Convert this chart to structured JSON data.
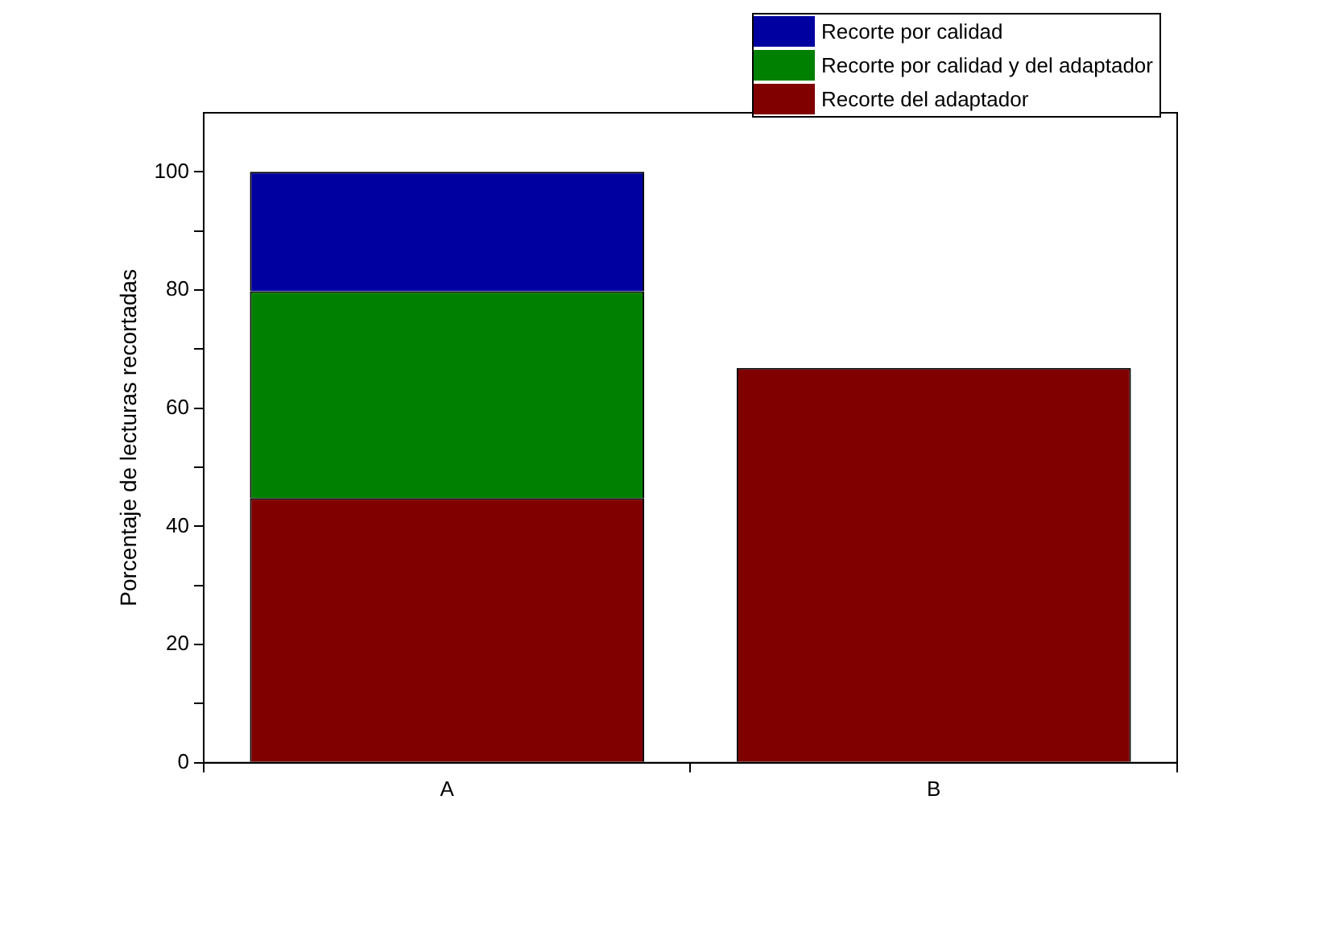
{
  "chart_data": {
    "type": "bar",
    "stacked": true,
    "ylabel": "Porcentaje de lecturas recortadas",
    "categories": [
      "A",
      "B"
    ],
    "series": [
      {
        "name": "Recorte del adaptador",
        "color": "#800000",
        "values": [
          44.8,
          66.8
        ]
      },
      {
        "name": "Recorte por calidad y del adaptador",
        "color": "#008000",
        "values": [
          35.0,
          null
        ]
      },
      {
        "name": "Recorte por calidad",
        "color": "#0000a0",
        "values": [
          20.2,
          null
        ]
      }
    ],
    "ylim": [
      0,
      110
    ],
    "yticks": [
      0,
      {
        "value": 10,
        "label": null
      },
      20,
      {
        "value": 30,
        "label": null
      },
      40,
      {
        "value": 50,
        "label": null
      },
      60,
      {
        "value": 70,
        "label": null
      },
      80,
      {
        "value": 90,
        "label": null
      },
      100
    ],
    "grid": false,
    "legend": "top right"
  }
}
